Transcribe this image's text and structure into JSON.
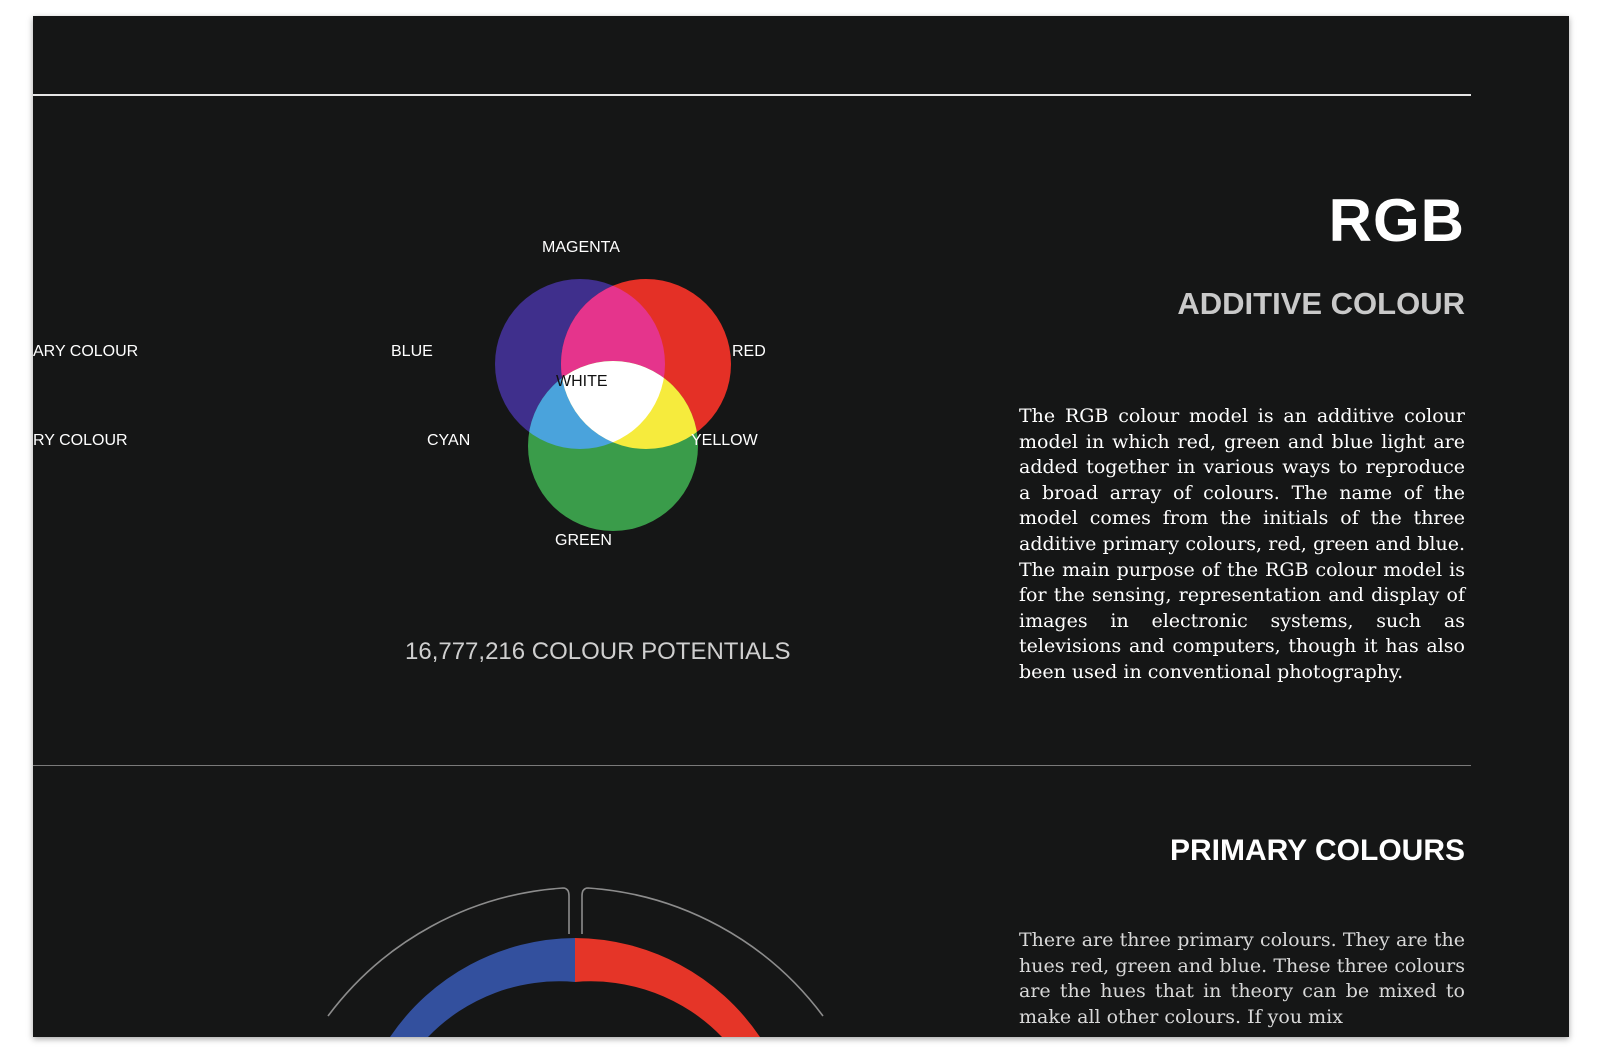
{
  "header": {
    "title": "RGB",
    "subtitle": "ADDITIVE COLOUR"
  },
  "description": "The RGB colour model is an additive colour model in which red, green and blue light are added together in various ways to reproduce a broad array of colours. The name of the model comes from the initials of the three additive primary colours, red, green and blue. The main purpose of the RGB colour model is for the sensing, representation and display of images in electronic systems, such as televisions and computers, though it has also been used in conventional photography.",
  "venn": {
    "labels": {
      "magenta": "MAGENTA",
      "blue": "BLUE",
      "red": "RED",
      "white": "WHITE",
      "cyan": "CYAN",
      "yellow": "YELLOW",
      "green": "GREEN"
    },
    "colors": {
      "blue": "#3f2f8c",
      "red": "#e43026",
      "green": "#3a9c4a",
      "magenta": "#e5348c",
      "cyan": "#4aa3dc",
      "yellow": "#f6eb3d",
      "white": "#ffffff"
    }
  },
  "side_labels": {
    "first": "ARY COLOUR",
    "second": "RY COLOUR"
  },
  "potentials": "16,777,216 COLOUR POTENTIALS",
  "primary": {
    "title": "PRIMARY COLOURS",
    "description": "There are three primary colours. They are the hues red, green and blue. These three colours are the hues that in theory can be mixed to make all other colours. If you mix"
  },
  "wheel": {
    "colors": {
      "blue": "#33509e",
      "red": "#e53528",
      "outline": "#8c8c8c"
    }
  }
}
